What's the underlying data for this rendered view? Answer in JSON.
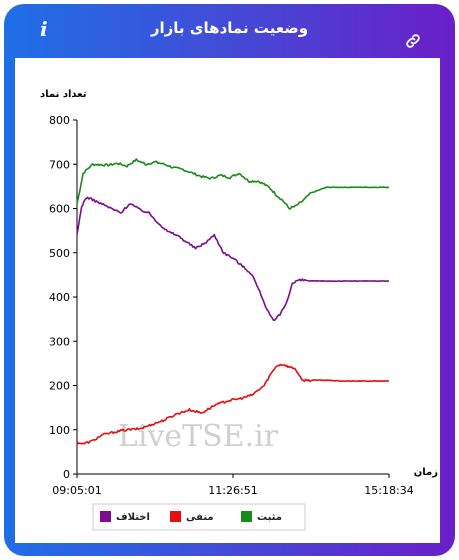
{
  "header": {
    "title": "وضعیت نمادهای بازار",
    "info_icon": "i",
    "link_icon": "link-icon"
  },
  "watermark": "LiveTSE.ir",
  "colors": {
    "positive": "#1a8a1a",
    "negative": "#e60e0e",
    "difference": "#7a0e8c",
    "header_gradient_start": "#1f6fe6",
    "header_gradient_end": "#6a1fc8"
  },
  "chart_data": {
    "type": "line",
    "ylabel": "تعداد نماد",
    "xlabel": "زمان",
    "ylim": [
      0,
      800
    ],
    "yticks": [
      0,
      100,
      200,
      300,
      400,
      500,
      600,
      700,
      800
    ],
    "xticks": [
      "09:05:01",
      "11:26:51",
      "15:18:34"
    ],
    "xtick_positions": [
      0,
      0.5,
      1
    ],
    "legend": {
      "placement": "bottom"
    },
    "series": [
      {
        "name": "مثبت",
        "color": "#1a8a1a",
        "x": [
          0,
          0.02,
          0.05,
          0.1,
          0.13,
          0.16,
          0.19,
          0.22,
          0.25,
          0.28,
          0.31,
          0.34,
          0.37,
          0.4,
          0.43,
          0.46,
          0.49,
          0.52,
          0.55,
          0.58,
          0.6,
          0.62,
          0.64,
          0.66,
          0.68,
          0.7,
          0.72,
          0.75,
          0.8,
          0.85,
          0.9,
          1
        ],
        "values": [
          610,
          680,
          700,
          698,
          702,
          696,
          710,
          700,
          705,
          700,
          692,
          688,
          680,
          672,
          668,
          675,
          670,
          680,
          662,
          662,
          655,
          645,
          630,
          618,
          600,
          605,
          615,
          635,
          648,
          648,
          648,
          648
        ]
      },
      {
        "name": "منفی",
        "color": "#e60e0e",
        "x": [
          0,
          0.02,
          0.05,
          0.08,
          0.12,
          0.16,
          0.2,
          0.24,
          0.28,
          0.32,
          0.36,
          0.4,
          0.44,
          0.48,
          0.52,
          0.56,
          0.6,
          0.62,
          0.64,
          0.66,
          0.68,
          0.7,
          0.72,
          0.75,
          0.8,
          0.85,
          0.9,
          1
        ],
        "values": [
          72,
          68,
          75,
          88,
          95,
          100,
          102,
          112,
          122,
          136,
          145,
          138,
          155,
          165,
          170,
          178,
          200,
          225,
          245,
          248,
          242,
          238,
          212,
          212,
          212,
          210,
          210,
          210
        ]
      },
      {
        "name": "اختلاف",
        "color": "#7a0e8c",
        "x": [
          0,
          0.015,
          0.03,
          0.05,
          0.08,
          0.11,
          0.14,
          0.17,
          0.2,
          0.23,
          0.26,
          0.29,
          0.32,
          0.35,
          0.38,
          0.41,
          0.44,
          0.47,
          0.5,
          0.53,
          0.56,
          0.59,
          0.61,
          0.63,
          0.65,
          0.67,
          0.69,
          0.71,
          0.73,
          0.76,
          0.8,
          0.85,
          0.9,
          1
        ],
        "values": [
          540,
          605,
          625,
          620,
          610,
          600,
          590,
          612,
          598,
          590,
          568,
          548,
          540,
          525,
          510,
          522,
          540,
          500,
          488,
          470,
          452,
          405,
          370,
          345,
          360,
          385,
          430,
          438,
          438,
          436,
          436,
          436,
          436,
          436
        ]
      }
    ]
  }
}
